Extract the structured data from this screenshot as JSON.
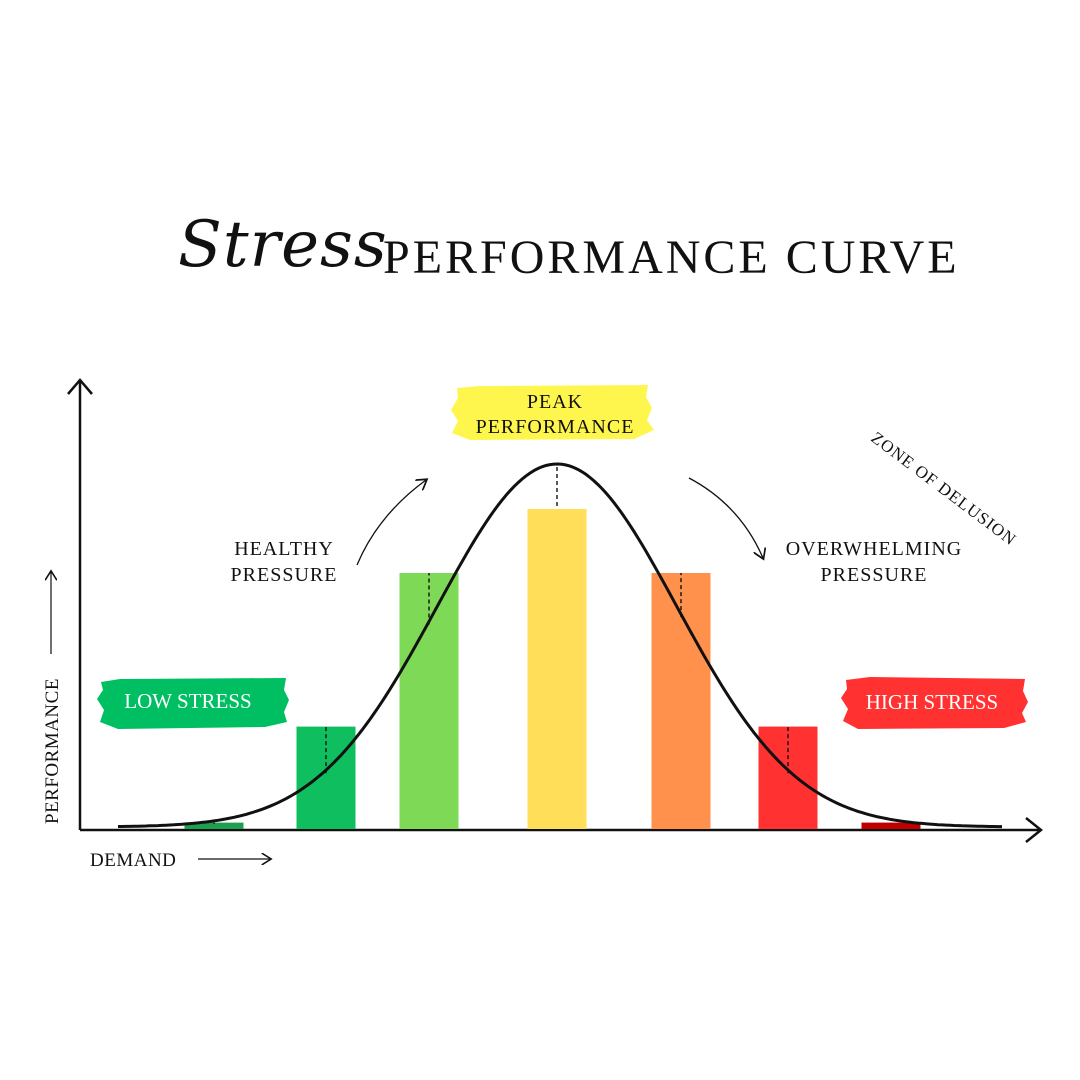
{
  "title": {
    "script_part": "Stress",
    "main_part": "PERFORMANCE CURVE"
  },
  "chart_data": {
    "type": "bar",
    "categories": [
      "",
      "",
      "",
      "",
      "",
      "",
      ""
    ],
    "values": [
      2,
      32,
      80,
      100,
      80,
      32,
      2
    ],
    "colors": [
      "#1e9e4f",
      "#0fbf5f",
      "#7ed957",
      "#ffde59",
      "#ff914d",
      "#ff3131",
      "#c00000"
    ],
    "curve": "bell",
    "xlabel": "DEMAND",
    "ylabel": "PERFORMANCE",
    "annotations": {
      "low_stress": "LOW STRESS",
      "high_stress": "HIGH STRESS",
      "peak_line1": "PEAK",
      "peak_line2": "PERFORMANCE",
      "healthy_line1": "HEALTHY",
      "healthy_line2": "PRESSURE",
      "overwhelming_line1": "OVERWHELMING",
      "overwhelming_line2": "PRESSURE",
      "zone_of_delusion": "ZONE OF DELUSION"
    },
    "highlight_colors": {
      "low_stress": "#00bf63",
      "peak": "#fff64d",
      "high_stress": "#ff3131"
    },
    "grid": false,
    "legend": "none"
  }
}
